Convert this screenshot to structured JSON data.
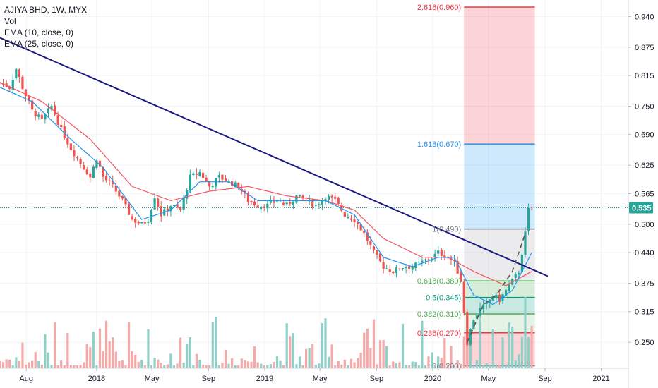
{
  "legend": {
    "title": "AJIYA BHD, 1W, MYX",
    "lines": [
      "Vol",
      "EMA (10, close, 0)",
      "EMA (25, close, 0)"
    ]
  },
  "chart_data": {
    "type": "candlestick",
    "symbol": "AJIYA BHD",
    "interval": "1W",
    "exchange": "MYX",
    "y_axis": {
      "ticks": [
        0.94,
        0.875,
        0.815,
        0.75,
        0.69,
        0.625,
        0.565,
        0.5,
        0.44,
        0.375,
        0.315,
        0.25
      ],
      "tick_labels": [
        "0.940",
        "0.875",
        "0.815",
        "0.750",
        "0.690",
        "0.625",
        "0.565",
        "0.500",
        "0.440",
        "0.375",
        "0.315",
        "0.250"
      ],
      "range": [
        0.195,
        0.975
      ],
      "position": "right"
    },
    "x_axis": {
      "tick_labels": [
        "Aug",
        "2018",
        "May",
        "Sep",
        "2019",
        "May",
        "Sep",
        "2020",
        "May",
        "Sep",
        "2021"
      ],
      "ticks": [
        "2017-08",
        "2018-01",
        "2018-05",
        "2018-09",
        "2019-01",
        "2019-05",
        "2019-09",
        "2020-01",
        "2020-05",
        "2020-09",
        "2021-01"
      ],
      "range": [
        "2017-06-05",
        "2021-03-01"
      ]
    },
    "last_price": 0.535,
    "last_price_label": "0.535",
    "price_path": [
      [
        "2017-06-05",
        0.8
      ],
      [
        "2017-06-26",
        0.79
      ],
      [
        "2017-07-10",
        0.83
      ],
      [
        "2017-07-24",
        0.79
      ],
      [
        "2017-08-14",
        0.74
      ],
      [
        "2017-09-04",
        0.72
      ],
      [
        "2017-09-25",
        0.75
      ],
      [
        "2017-10-16",
        0.7
      ],
      [
        "2017-11-06",
        0.66
      ],
      [
        "2017-11-27",
        0.63
      ],
      [
        "2017-12-18",
        0.6
      ],
      [
        "2018-01-01",
        0.64
      ],
      [
        "2018-01-15",
        0.6
      ],
      [
        "2018-02-05",
        0.58
      ],
      [
        "2018-02-26",
        0.55
      ],
      [
        "2018-03-19",
        0.51
      ],
      [
        "2018-04-09",
        0.5
      ],
      [
        "2018-04-23",
        0.51
      ],
      [
        "2018-05-07",
        0.56
      ],
      [
        "2018-05-21",
        0.52
      ],
      [
        "2018-06-11",
        0.54
      ],
      [
        "2018-07-02",
        0.53
      ],
      [
        "2018-07-23",
        0.6
      ],
      [
        "2018-08-13",
        0.61
      ],
      [
        "2018-09-03",
        0.58
      ],
      [
        "2018-09-24",
        0.6
      ],
      [
        "2018-10-15",
        0.59
      ],
      [
        "2018-11-05",
        0.58
      ],
      [
        "2018-11-26",
        0.55
      ],
      [
        "2018-12-17",
        0.54
      ],
      [
        "2019-01-07",
        0.54
      ],
      [
        "2019-01-28",
        0.55
      ],
      [
        "2019-02-18",
        0.54
      ],
      [
        "2019-03-11",
        0.56
      ],
      [
        "2019-04-01",
        0.55
      ],
      [
        "2019-04-22",
        0.54
      ],
      [
        "2019-05-13",
        0.56
      ],
      [
        "2019-06-03",
        0.55
      ],
      [
        "2019-06-24",
        0.52
      ],
      [
        "2019-07-15",
        0.51
      ],
      [
        "2019-08-05",
        0.48
      ],
      [
        "2019-08-26",
        0.44
      ],
      [
        "2019-09-16",
        0.41
      ],
      [
        "2019-10-07",
        0.4
      ],
      [
        "2019-10-28",
        0.41
      ],
      [
        "2019-11-18",
        0.41
      ],
      [
        "2019-12-09",
        0.42
      ],
      [
        "2019-12-30",
        0.43
      ],
      [
        "2020-01-13",
        0.44
      ],
      [
        "2020-02-03",
        0.43
      ],
      [
        "2020-02-17",
        0.42
      ],
      [
        "2020-03-02",
        0.38
      ],
      [
        "2020-03-16",
        0.25
      ],
      [
        "2020-03-30",
        0.3
      ],
      [
        "2020-04-13",
        0.32
      ],
      [
        "2020-04-27",
        0.33
      ],
      [
        "2020-05-11",
        0.35
      ],
      [
        "2020-05-25",
        0.34
      ],
      [
        "2020-06-08",
        0.36
      ],
      [
        "2020-06-22",
        0.38
      ],
      [
        "2020-07-06",
        0.4
      ],
      [
        "2020-07-20",
        0.48
      ],
      [
        "2020-07-27",
        0.53
      ],
      [
        "2020-08-03",
        0.535
      ]
    ],
    "ema_10": [
      [
        "2017-06-05",
        0.79
      ],
      [
        "2017-08-14",
        0.76
      ],
      [
        "2017-11-06",
        0.68
      ],
      [
        "2018-01-15",
        0.62
      ],
      [
        "2018-04-09",
        0.51
      ],
      [
        "2018-06-11",
        0.53
      ],
      [
        "2018-08-13",
        0.59
      ],
      [
        "2018-10-15",
        0.59
      ],
      [
        "2018-12-17",
        0.55
      ],
      [
        "2019-03-11",
        0.55
      ],
      [
        "2019-05-13",
        0.55
      ],
      [
        "2019-07-15",
        0.52
      ],
      [
        "2019-09-16",
        0.43
      ],
      [
        "2019-11-18",
        0.41
      ],
      [
        "2020-01-13",
        0.43
      ],
      [
        "2020-02-17",
        0.43
      ],
      [
        "2020-03-30",
        0.35
      ],
      [
        "2020-05-11",
        0.33
      ],
      [
        "2020-06-22",
        0.36
      ],
      [
        "2020-08-03",
        0.44
      ]
    ],
    "ema_25": [
      [
        "2017-06-05",
        0.8
      ],
      [
        "2017-09-04",
        0.76
      ],
      [
        "2017-12-18",
        0.68
      ],
      [
        "2018-03-19",
        0.58
      ],
      [
        "2018-06-11",
        0.55
      ],
      [
        "2018-09-03",
        0.57
      ],
      [
        "2018-11-26",
        0.58
      ],
      [
        "2019-02-18",
        0.56
      ],
      [
        "2019-05-13",
        0.55
      ],
      [
        "2019-07-15",
        0.53
      ],
      [
        "2019-09-16",
        0.47
      ],
      [
        "2019-12-09",
        0.43
      ],
      [
        "2020-02-03",
        0.43
      ],
      [
        "2020-03-30",
        0.4
      ],
      [
        "2020-06-08",
        0.37
      ],
      [
        "2020-08-03",
        0.4
      ]
    ],
    "trendline": [
      [
        "2017-06-05",
        0.895
      ],
      [
        "2020-09-07",
        0.39
      ]
    ],
    "volume_bars": 168,
    "fibonacci": {
      "start_date": "2020-03-09",
      "end_date": "2020-08-10",
      "levels": [
        {
          "label": "2.618(0.960)",
          "price": 0.96,
          "color": "#f23645"
        },
        {
          "label": "1.618(0.670)",
          "price": 0.67,
          "color": "#2196f3"
        },
        {
          "label": "1(0.490)",
          "price": 0.49,
          "color": "#787b86"
        },
        {
          "label": "0.618(0.380)",
          "price": 0.38,
          "color": "#4caf50"
        },
        {
          "label": "0.5(0.345)",
          "price": 0.345,
          "color": "#089981"
        },
        {
          "label": "0.382(0.310)",
          "price": 0.31,
          "color": "#4caf50"
        },
        {
          "label": "0.236(0.270)",
          "price": 0.27,
          "color": "#f23645"
        },
        {
          "label": "0(0.200)",
          "price": 0.2,
          "color": "#787b86"
        }
      ]
    },
    "zigzag": [
      [
        "2020-03-16",
        0.25
      ],
      [
        "2020-04-20",
        0.33
      ],
      [
        "2020-05-18",
        0.35
      ],
      [
        "2020-06-22",
        0.4
      ],
      [
        "2020-07-20",
        0.48
      ]
    ],
    "colors": {
      "up": "#26a69a",
      "down": "#ef5350",
      "ema_10": "#2196f3",
      "ema_25": "#f7525f",
      "trendline": "#1a1a80",
      "price_line": "#26a69a",
      "vol_up": "#8fd1c9",
      "vol_down": "#f5a9a8"
    }
  }
}
